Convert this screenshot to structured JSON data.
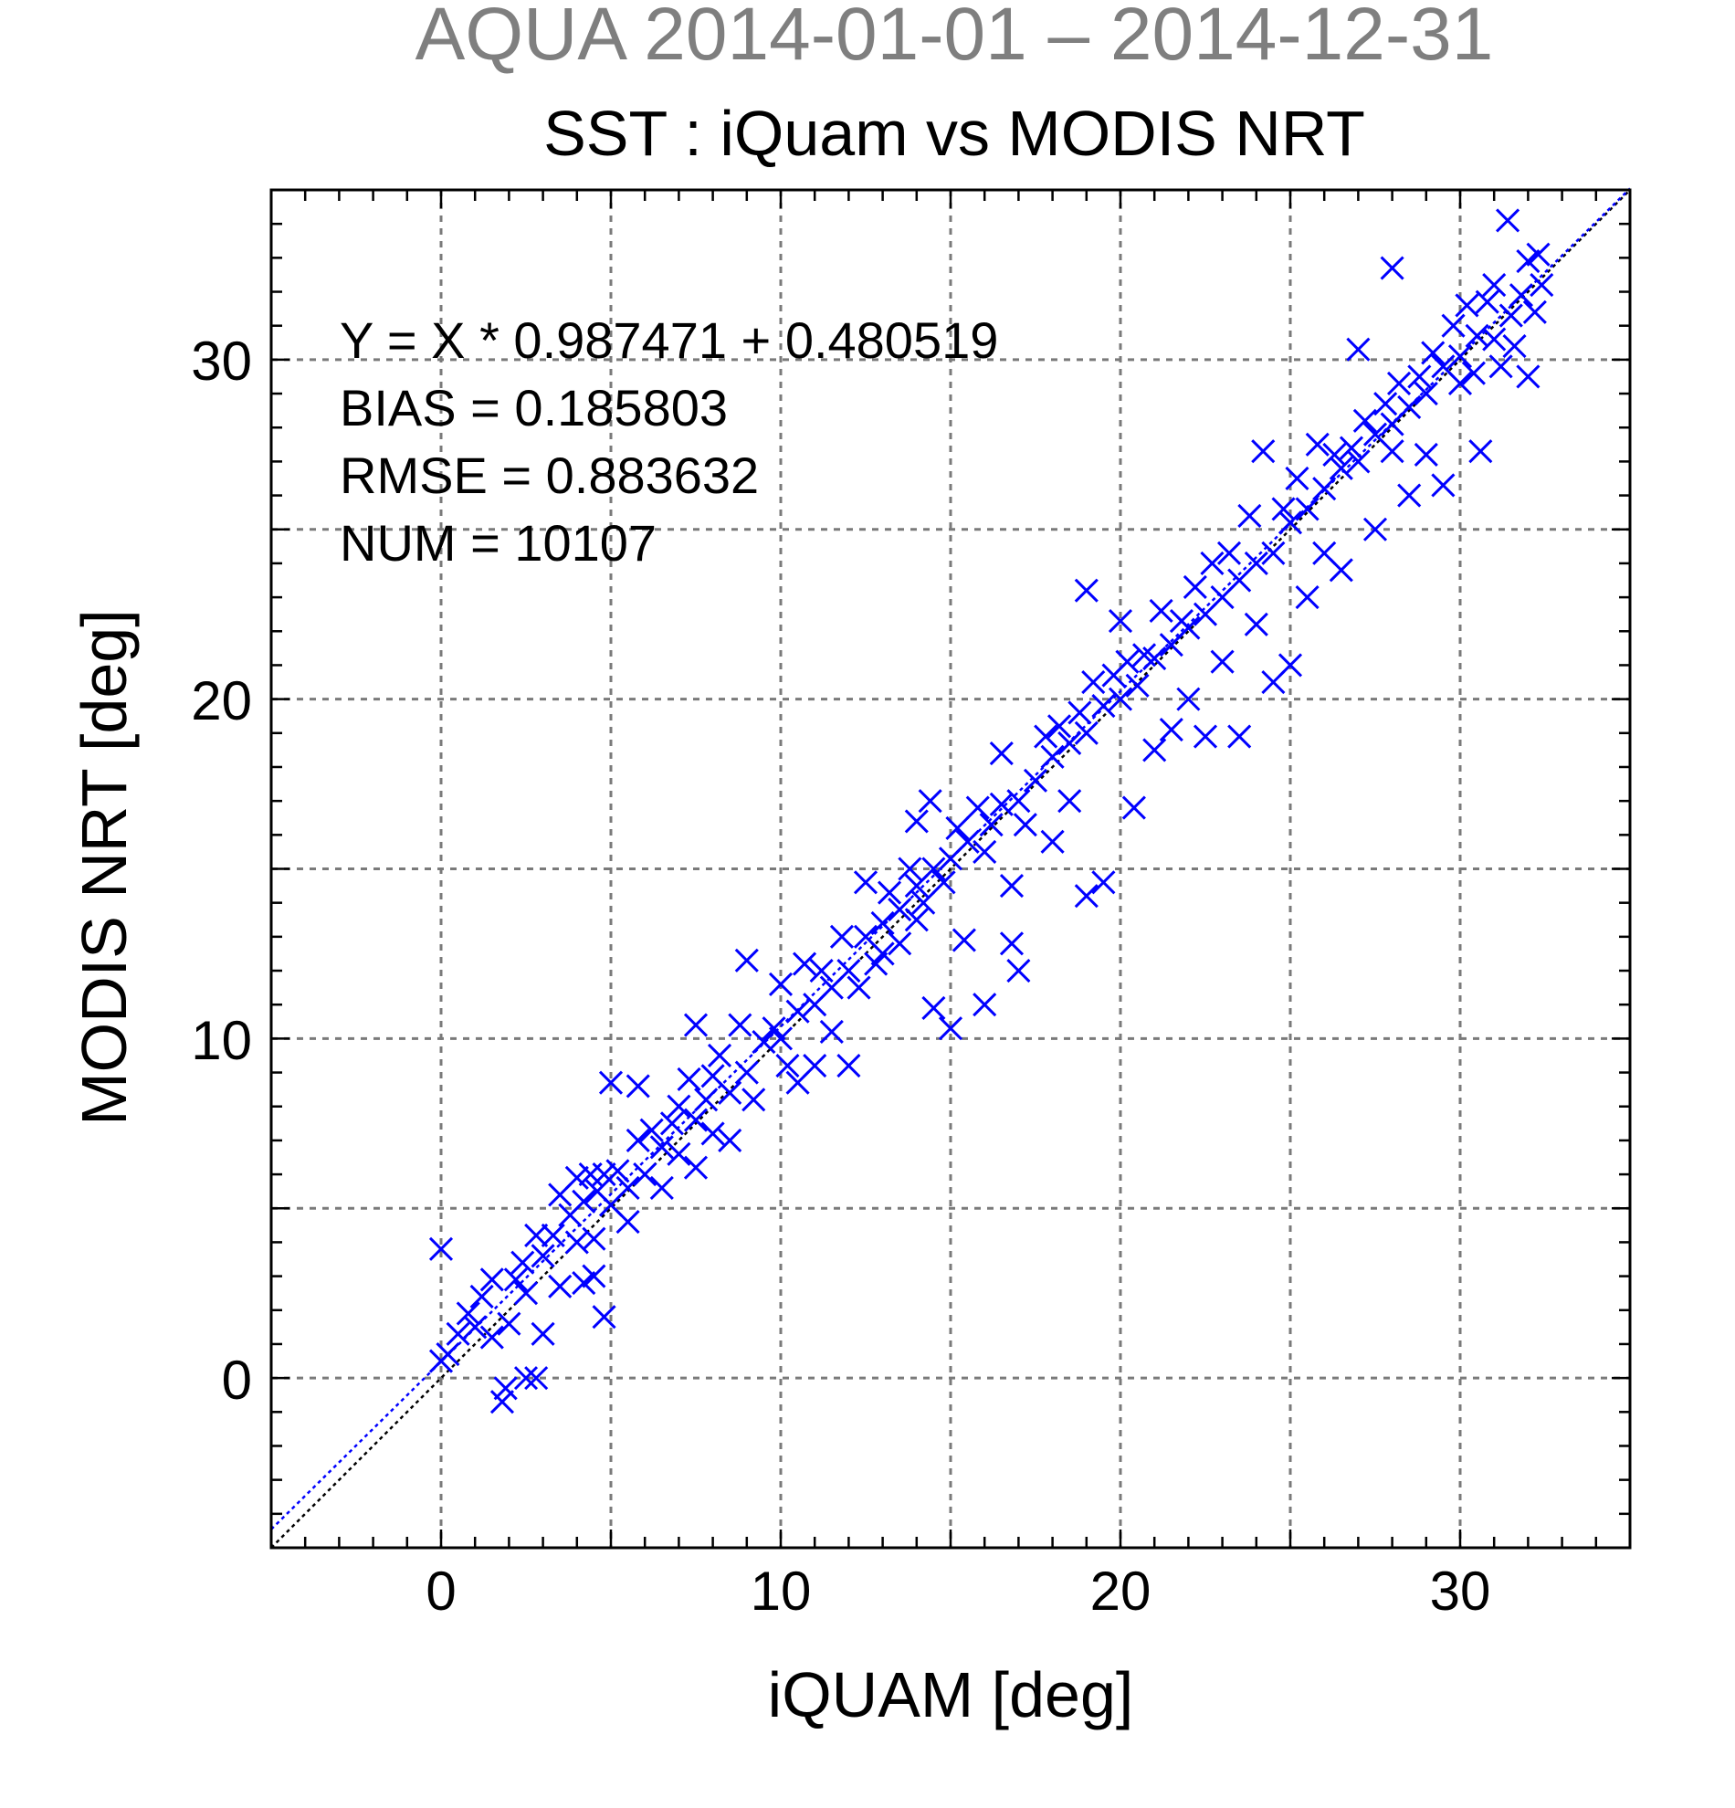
{
  "chart_data": {
    "type": "scatter",
    "title": "AQUA 2014-01-01 – 2014-12-31",
    "subtitle": "SST : iQuam vs MODIS NRT",
    "xlabel": "iQUAM [deg]",
    "ylabel": "MODIS NRT [deg]",
    "xlim": [
      -5,
      35
    ],
    "ylim": [
      -5,
      35
    ],
    "xticks": [
      "0",
      "10",
      "20",
      "30"
    ],
    "yticks": [
      "0",
      "10",
      "20",
      "30"
    ],
    "grid": true,
    "grid_step": 5,
    "marker": "x",
    "marker_color": "#0000ff",
    "reference_line": {
      "slope": 1,
      "intercept": 0,
      "color": "#000000",
      "style": "dotted"
    },
    "fit_line": {
      "slope": 0.987471,
      "intercept": 0.480519,
      "color": "#0000ff",
      "style": "dotted"
    },
    "annotations": [
      "Y = X * 0.987471 + 0.480519",
      "BIAS = 0.185803",
      "RMSE = 0.883632",
      "NUM = 10107"
    ],
    "statistics": {
      "slope": 0.987471,
      "intercept": 0.480519,
      "bias": 0.185803,
      "rmse": 0.883632,
      "num": 10107
    },
    "series": [
      {
        "points": [
          [
            0.0,
            3.8
          ],
          [
            0.0,
            0.5
          ],
          [
            0.2,
            0.7
          ],
          [
            0.5,
            1.3
          ],
          [
            0.8,
            1.9
          ],
          [
            1.0,
            1.5
          ],
          [
            1.2,
            2.4
          ],
          [
            1.5,
            1.2
          ],
          [
            1.5,
            2.9
          ],
          [
            1.8,
            -0.7
          ],
          [
            1.9,
            -0.3
          ],
          [
            2.0,
            1.6
          ],
          [
            2.2,
            2.9
          ],
          [
            2.4,
            3.4
          ],
          [
            2.5,
            0.0
          ],
          [
            2.5,
            2.5
          ],
          [
            2.8,
            0.0
          ],
          [
            2.8,
            4.2
          ],
          [
            3.0,
            1.3
          ],
          [
            3.0,
            3.6
          ],
          [
            3.3,
            4.2
          ],
          [
            3.5,
            2.7
          ],
          [
            3.5,
            5.4
          ],
          [
            3.8,
            4.8
          ],
          [
            4.0,
            4.0
          ],
          [
            4.0,
            5.9
          ],
          [
            4.2,
            2.8
          ],
          [
            4.2,
            5.2
          ],
          [
            4.4,
            6.0
          ],
          [
            4.5,
            4.1
          ],
          [
            4.5,
            3.0
          ],
          [
            4.6,
            5.5
          ],
          [
            4.8,
            6.0
          ],
          [
            4.8,
            1.8
          ],
          [
            5.0,
            5.1
          ],
          [
            5.0,
            8.7
          ],
          [
            5.2,
            6.1
          ],
          [
            5.5,
            4.6
          ],
          [
            5.5,
            5.6
          ],
          [
            5.8,
            7.0
          ],
          [
            5.8,
            8.6
          ],
          [
            6.0,
            6.0
          ],
          [
            6.2,
            7.3
          ],
          [
            6.5,
            5.6
          ],
          [
            6.5,
            6.8
          ],
          [
            6.8,
            7.5
          ],
          [
            7.0,
            6.6
          ],
          [
            7.0,
            8.0
          ],
          [
            7.3,
            8.8
          ],
          [
            7.5,
            7.6
          ],
          [
            7.5,
            6.2
          ],
          [
            7.5,
            10.4
          ],
          [
            7.8,
            8.2
          ],
          [
            8.0,
            7.2
          ],
          [
            8.0,
            8.9
          ],
          [
            8.2,
            9.5
          ],
          [
            8.5,
            8.4
          ],
          [
            8.5,
            7.0
          ],
          [
            8.8,
            10.4
          ],
          [
            9.0,
            9.0
          ],
          [
            9.0,
            12.3
          ],
          [
            9.2,
            8.2
          ],
          [
            9.5,
            9.9
          ],
          [
            9.8,
            10.3
          ],
          [
            10.0,
            10.0
          ],
          [
            10.0,
            11.6
          ],
          [
            10.2,
            9.2
          ],
          [
            10.5,
            10.8
          ],
          [
            10.5,
            8.7
          ],
          [
            10.7,
            12.2
          ],
          [
            11.0,
            11.0
          ],
          [
            11.0,
            9.2
          ],
          [
            11.2,
            12.0
          ],
          [
            11.5,
            11.5
          ],
          [
            11.5,
            10.2
          ],
          [
            11.8,
            13.0
          ],
          [
            12.0,
            12.0
          ],
          [
            12.0,
            9.2
          ],
          [
            12.3,
            11.5
          ],
          [
            12.5,
            13.0
          ],
          [
            12.5,
            14.6
          ],
          [
            12.8,
            12.2
          ],
          [
            13.0,
            13.4
          ],
          [
            13.0,
            12.5
          ],
          [
            13.2,
            14.3
          ],
          [
            13.5,
            13.8
          ],
          [
            13.5,
            12.8
          ],
          [
            13.8,
            15.0
          ],
          [
            14.0,
            14.5
          ],
          [
            14.0,
            13.5
          ],
          [
            14.0,
            16.4
          ],
          [
            14.2,
            14.0
          ],
          [
            14.4,
            17.0
          ],
          [
            14.5,
            15.0
          ],
          [
            14.5,
            10.9
          ],
          [
            14.8,
            14.6
          ],
          [
            15.0,
            15.3
          ],
          [
            15.0,
            10.3
          ],
          [
            15.2,
            16.2
          ],
          [
            15.4,
            12.9
          ],
          [
            15.5,
            15.8
          ],
          [
            15.8,
            16.8
          ],
          [
            16.0,
            15.5
          ],
          [
            16.0,
            11.0
          ],
          [
            16.2,
            16.3
          ],
          [
            16.5,
            16.9
          ],
          [
            16.5,
            18.4
          ],
          [
            16.8,
            14.5
          ],
          [
            16.8,
            12.8
          ],
          [
            17.0,
            17.0
          ],
          [
            17.0,
            12.0
          ],
          [
            17.2,
            16.3
          ],
          [
            17.5,
            17.6
          ],
          [
            17.8,
            18.9
          ],
          [
            18.0,
            18.3
          ],
          [
            18.0,
            15.8
          ],
          [
            18.2,
            19.2
          ],
          [
            18.5,
            18.7
          ],
          [
            18.5,
            17.0
          ],
          [
            18.8,
            19.6
          ],
          [
            19.0,
            19.0
          ],
          [
            19.0,
            23.2
          ],
          [
            19.0,
            14.2
          ],
          [
            19.2,
            20.5
          ],
          [
            19.5,
            19.8
          ],
          [
            19.5,
            14.6
          ],
          [
            19.8,
            20.7
          ],
          [
            20.0,
            20.0
          ],
          [
            20.0,
            22.3
          ],
          [
            20.2,
            21.1
          ],
          [
            20.4,
            16.8
          ],
          [
            20.5,
            20.4
          ],
          [
            20.7,
            21.3
          ],
          [
            21.0,
            21.2
          ],
          [
            21.0,
            18.5
          ],
          [
            21.2,
            22.6
          ],
          [
            21.5,
            21.6
          ],
          [
            21.5,
            19.1
          ],
          [
            21.8,
            22.3
          ],
          [
            22.0,
            22.1
          ],
          [
            22.0,
            20.0
          ],
          [
            22.2,
            23.3
          ],
          [
            22.5,
            22.5
          ],
          [
            22.5,
            18.9
          ],
          [
            22.7,
            24.0
          ],
          [
            23.0,
            23.0
          ],
          [
            23.0,
            21.1
          ],
          [
            23.2,
            24.3
          ],
          [
            23.5,
            23.5
          ],
          [
            23.5,
            18.9
          ],
          [
            23.8,
            25.4
          ],
          [
            24.0,
            24.0
          ],
          [
            24.0,
            22.2
          ],
          [
            24.2,
            27.3
          ],
          [
            24.5,
            24.3
          ],
          [
            24.5,
            20.5
          ],
          [
            24.8,
            25.6
          ],
          [
            25.0,
            25.2
          ],
          [
            25.0,
            21.0
          ],
          [
            25.2,
            26.5
          ],
          [
            25.5,
            25.6
          ],
          [
            25.5,
            23.0
          ],
          [
            25.8,
            27.5
          ],
          [
            26.0,
            26.2
          ],
          [
            26.0,
            24.3
          ],
          [
            26.3,
            27.2
          ],
          [
            26.5,
            26.8
          ],
          [
            26.5,
            23.8
          ],
          [
            26.8,
            27.4
          ],
          [
            27.0,
            27.0
          ],
          [
            27.0,
            30.3
          ],
          [
            27.2,
            28.2
          ],
          [
            27.5,
            27.8
          ],
          [
            27.5,
            25.0
          ],
          [
            27.8,
            28.7
          ],
          [
            28.0,
            28.1
          ],
          [
            28.0,
            27.3
          ],
          [
            28.0,
            32.7
          ],
          [
            28.2,
            29.3
          ],
          [
            28.5,
            28.6
          ],
          [
            28.5,
            26.0
          ],
          [
            28.8,
            29.5
          ],
          [
            29.0,
            29.0
          ],
          [
            29.0,
            27.2
          ],
          [
            29.2,
            30.2
          ],
          [
            29.5,
            29.8
          ],
          [
            29.5,
            26.3
          ],
          [
            29.8,
            31.0
          ],
          [
            30.0,
            30.1
          ],
          [
            30.0,
            29.3
          ],
          [
            30.2,
            31.6
          ],
          [
            30.4,
            29.6
          ],
          [
            30.5,
            30.7
          ],
          [
            30.6,
            27.3
          ],
          [
            30.8,
            31.7
          ],
          [
            31.0,
            30.6
          ],
          [
            31.0,
            32.2
          ],
          [
            31.2,
            29.8
          ],
          [
            31.4,
            34.1
          ],
          [
            31.5,
            31.3
          ],
          [
            31.6,
            30.4
          ],
          [
            31.8,
            31.9
          ],
          [
            32.0,
            32.9
          ],
          [
            32.0,
            29.5
          ],
          [
            32.2,
            31.4
          ],
          [
            32.3,
            33.1
          ],
          [
            32.4,
            32.2
          ]
        ]
      }
    ]
  }
}
